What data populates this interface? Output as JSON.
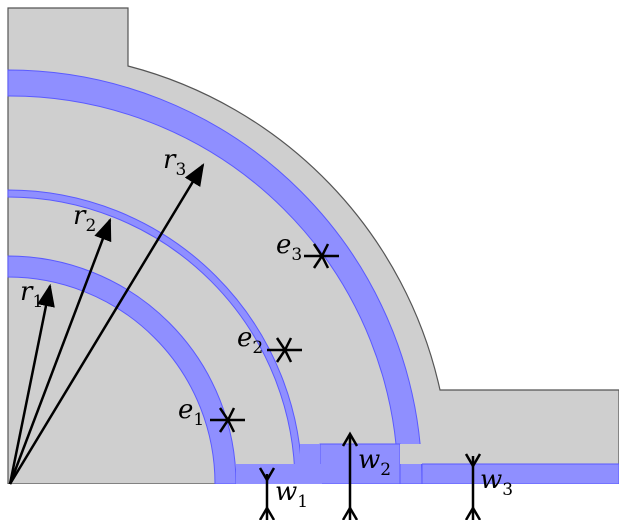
{
  "colors": {
    "background": "#ffffff",
    "body_fill": "#cfcfcf",
    "body_stroke": "#555555",
    "channel_fill": "#8f8fff",
    "channel_stroke": "#5a5aff",
    "arrow": "#000000"
  },
  "labels": {
    "r1": {
      "base": "r",
      "sub": "1"
    },
    "r2": {
      "base": "r",
      "sub": "2"
    },
    "r3": {
      "base": "r",
      "sub": "3"
    },
    "e1": {
      "base": "e",
      "sub": "1"
    },
    "e2": {
      "base": "e",
      "sub": "2"
    },
    "e3": {
      "base": "e",
      "sub": "3"
    },
    "w1": {
      "base": "w",
      "sub": "1"
    },
    "w2": {
      "base": "w",
      "sub": "2"
    },
    "w3": {
      "base": "w",
      "sub": "3"
    }
  }
}
